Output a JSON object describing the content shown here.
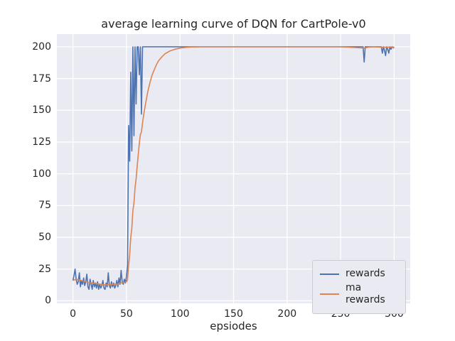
{
  "figure": {
    "background": "#ffffff",
    "plot_background": "#eaeaf2",
    "grid_color": "#ffffff",
    "text_color": "#262626"
  },
  "chart_data": {
    "type": "line",
    "title": "average learning curve of DQN for CartPole-v0",
    "xlabel": "epsiodes",
    "ylabel": "",
    "xlim": [
      -15,
      315
    ],
    "ylim": [
      -2,
      210
    ],
    "xticks": [
      0,
      50,
      100,
      150,
      200,
      250,
      300
    ],
    "yticks": [
      0,
      25,
      50,
      75,
      100,
      125,
      150,
      175,
      200
    ],
    "grid": true,
    "legend_position": "lower right",
    "series": [
      {
        "name": "rewards",
        "color": "#4c72b0",
        "points": [
          [
            0,
            16
          ],
          [
            1,
            20
          ],
          [
            2,
            25
          ],
          [
            3,
            17
          ],
          [
            4,
            13
          ],
          [
            5,
            15
          ],
          [
            6,
            22
          ],
          [
            7,
            11
          ],
          [
            8,
            16
          ],
          [
            9,
            13
          ],
          [
            10,
            18
          ],
          [
            11,
            12
          ],
          [
            12,
            15
          ],
          [
            13,
            21
          ],
          [
            14,
            11
          ],
          [
            15,
            9
          ],
          [
            16,
            17
          ],
          [
            17,
            13
          ],
          [
            18,
            9
          ],
          [
            19,
            16
          ],
          [
            20,
            11
          ],
          [
            21,
            14
          ],
          [
            22,
            10
          ],
          [
            23,
            15
          ],
          [
            24,
            9
          ],
          [
            25,
            13
          ],
          [
            26,
            10
          ],
          [
            27,
            12
          ],
          [
            28,
            16
          ],
          [
            29,
            10
          ],
          [
            30,
            9
          ],
          [
            31,
            14
          ],
          [
            32,
            11
          ],
          [
            33,
            22
          ],
          [
            34,
            12
          ],
          [
            35,
            10
          ],
          [
            36,
            15
          ],
          [
            37,
            11
          ],
          [
            38,
            14
          ],
          [
            39,
            10
          ],
          [
            40,
            12
          ],
          [
            41,
            16
          ],
          [
            42,
            11
          ],
          [
            43,
            18
          ],
          [
            44,
            13
          ],
          [
            45,
            24
          ],
          [
            46,
            15
          ],
          [
            47,
            13
          ],
          [
            48,
            17
          ],
          [
            49,
            14
          ],
          [
            50,
            19
          ],
          [
            51,
            28
          ],
          [
            52,
            138
          ],
          [
            53,
            110
          ],
          [
            54,
            180
          ],
          [
            55,
            118
          ],
          [
            56,
            200
          ],
          [
            57,
            130
          ],
          [
            58,
            200
          ],
          [
            59,
            155
          ],
          [
            60,
            200
          ],
          [
            61,
            200
          ],
          [
            62,
            178
          ],
          [
            63,
            200
          ],
          [
            64,
            147
          ],
          [
            65,
            200
          ],
          [
            66,
            200
          ],
          [
            70,
            200
          ],
          [
            100,
            200
          ],
          [
            150,
            200
          ],
          [
            200,
            200
          ],
          [
            250,
            200
          ],
          [
            271,
            200
          ],
          [
            272,
            188
          ],
          [
            273,
            200
          ],
          [
            280,
            200
          ],
          [
            288,
            200
          ],
          [
            289,
            195
          ],
          [
            290,
            200
          ],
          [
            291,
            197
          ],
          [
            292,
            193
          ],
          [
            293,
            200
          ],
          [
            294,
            198
          ],
          [
            295,
            195
          ],
          [
            296,
            200
          ],
          [
            297,
            198
          ],
          [
            298,
            200
          ],
          [
            300,
            199
          ]
        ]
      },
      {
        "name": "ma rewards",
        "color": "#dd8452",
        "points": [
          [
            0,
            16
          ],
          [
            3,
            17
          ],
          [
            6,
            16.5
          ],
          [
            10,
            15.5
          ],
          [
            14,
            14.5
          ],
          [
            18,
            14
          ],
          [
            22,
            13.5
          ],
          [
            26,
            13
          ],
          [
            30,
            12.5
          ],
          [
            34,
            12.8
          ],
          [
            38,
            13
          ],
          [
            42,
            13.2
          ],
          [
            45,
            14
          ],
          [
            48,
            14.5
          ],
          [
            50,
            15
          ],
          [
            51,
            16.5
          ],
          [
            52,
            28
          ],
          [
            53,
            36
          ],
          [
            54,
            50
          ],
          [
            55,
            57
          ],
          [
            56,
            71
          ],
          [
            57,
            77
          ],
          [
            58,
            89
          ],
          [
            59,
            96
          ],
          [
            60,
            106
          ],
          [
            61,
            115
          ],
          [
            62,
            124
          ],
          [
            63,
            131
          ],
          [
            64,
            133
          ],
          [
            65,
            140
          ],
          [
            66,
            146
          ],
          [
            67,
            151
          ],
          [
            68,
            156
          ],
          [
            70,
            165
          ],
          [
            72,
            172
          ],
          [
            74,
            178
          ],
          [
            76,
            182
          ],
          [
            78,
            186
          ],
          [
            80,
            189
          ],
          [
            83,
            192
          ],
          [
            86,
            194.5
          ],
          [
            90,
            196.5
          ],
          [
            95,
            198
          ],
          [
            100,
            199
          ],
          [
            105,
            199.5
          ],
          [
            110,
            199.8
          ],
          [
            120,
            200
          ],
          [
            150,
            200
          ],
          [
            200,
            200
          ],
          [
            250,
            200
          ],
          [
            272,
            199
          ],
          [
            276,
            199.7
          ],
          [
            280,
            200
          ],
          [
            290,
            199.6
          ],
          [
            300,
            199.8
          ]
        ]
      }
    ]
  },
  "legend": {
    "entries": [
      {
        "label": "rewards",
        "color": "#4c72b0"
      },
      {
        "label": "ma rewards",
        "color": "#dd8452"
      }
    ]
  }
}
